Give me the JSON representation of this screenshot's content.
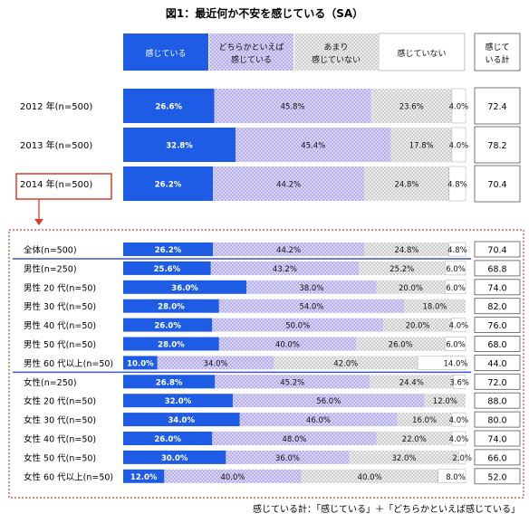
{
  "chart_data": {
    "type": "bar",
    "orientation": "horizontal",
    "stacked": true,
    "title": "図1：最近何か不安を感じている（SA）",
    "xlim": [
      0,
      100
    ],
    "legend": [
      "感じている",
      "どちらかといえば 感じている",
      "あまり 感じていない",
      "感じていない"
    ],
    "total_header": "感じて いる計",
    "colors": {
      "s1": "#1f5ce6",
      "s2": "#c9c4f0",
      "s3": "#dcdcdc",
      "s4": "#ffffff",
      "accent_red": "#d83b2e",
      "separator": "#3b57c9"
    },
    "series": [
      {
        "name": "感じている"
      },
      {
        "name": "どちらかといえば感じている"
      },
      {
        "name": "あまり感じていない"
      },
      {
        "name": "感じていない"
      }
    ],
    "years": [
      {
        "label": "2012 年(n=500)",
        "values": [
          26.6,
          45.8,
          23.6,
          4.0
        ],
        "labels": [
          "26.6%",
          "45.8%",
          "23.6%",
          "4.0%"
        ],
        "total": "72.4"
      },
      {
        "label": "2013 年(n=500)",
        "values": [
          32.8,
          45.4,
          17.8,
          4.0
        ],
        "labels": [
          "32.8%",
          "45.4%",
          "17.8%",
          "4.0%"
        ],
        "total": "78.2"
      },
      {
        "label": "2014 年(n=500)",
        "values": [
          26.2,
          44.2,
          24.8,
          4.8
        ],
        "labels": [
          "26.2%",
          "44.2%",
          "24.8%",
          "4.8%"
        ],
        "total": "70.4"
      }
    ],
    "breakdown": [
      {
        "label": "全体(n=500)",
        "values": [
          26.2,
          44.2,
          24.8,
          4.8
        ],
        "labels": [
          "26.2%",
          "44.2%",
          "24.8%",
          "4.8%"
        ],
        "total": "70.4"
      },
      {
        "label": "男性(n=250)",
        "values": [
          25.6,
          43.2,
          25.2,
          6.0
        ],
        "labels": [
          "25.6%",
          "43.2%",
          "25.2%",
          "6.0%"
        ],
        "total": "68.8"
      },
      {
        "label": "男性 20 代(n=50)",
        "values": [
          36.0,
          38.0,
          20.0,
          6.0
        ],
        "labels": [
          "36.0%",
          "38.0%",
          "20.0%",
          "6.0%"
        ],
        "total": "74.0"
      },
      {
        "label": "男性 30 代(n=50)",
        "values": [
          28.0,
          54.0,
          18.0,
          0
        ],
        "labels": [
          "28.0%",
          "54.0%",
          "18.0%",
          ""
        ],
        "total": "82.0"
      },
      {
        "label": "男性 40 代(n=50)",
        "values": [
          26.0,
          50.0,
          20.0,
          4.0
        ],
        "labels": [
          "26.0%",
          "50.0%",
          "20.0%",
          "4.0%"
        ],
        "total": "76.0"
      },
      {
        "label": "男性 50 代(n=50)",
        "values": [
          28.0,
          40.0,
          26.0,
          6.0
        ],
        "labels": [
          "28.0%",
          "40.0%",
          "26.0%",
          "6.0%"
        ],
        "total": "68.0"
      },
      {
        "label": "男性 60 代以上(n=50)",
        "values": [
          10.0,
          34.0,
          42.0,
          14.0
        ],
        "labels": [
          "10.0%",
          "34.0%",
          "42.0%",
          "14.0%"
        ],
        "total": "44.0"
      },
      {
        "label": "女性(n=250)",
        "values": [
          26.8,
          45.2,
          24.4,
          3.6
        ],
        "labels": [
          "26.8%",
          "45.2%",
          "24.4%",
          "3.6%"
        ],
        "total": "72.0"
      },
      {
        "label": "女性 20 代(n=50)",
        "values": [
          32.0,
          56.0,
          12.0,
          0
        ],
        "labels": [
          "32.0%",
          "56.0%",
          "12.0%",
          ""
        ],
        "total": "88.0"
      },
      {
        "label": "女性 30 代(n=50)",
        "values": [
          34.0,
          46.0,
          16.0,
          4.0
        ],
        "labels": [
          "34.0%",
          "46.0%",
          "16.0%",
          "4.0%"
        ],
        "total": "80.0"
      },
      {
        "label": "女性 40 代(n=50)",
        "values": [
          26.0,
          48.0,
          22.0,
          4.0
        ],
        "labels": [
          "26.0%",
          "48.0%",
          "22.0%",
          "4.0%"
        ],
        "total": "74.0"
      },
      {
        "label": "女性 50 代(n=50)",
        "values": [
          30.0,
          36.0,
          32.0,
          2.0
        ],
        "labels": [
          "30.0%",
          "36.0%",
          "32.0%",
          "2.0%"
        ],
        "total": "66.0"
      },
      {
        "label": "女性 60 代以上(n=50)",
        "values": [
          12.0,
          40.0,
          40.0,
          8.0
        ],
        "labels": [
          "12.0%",
          "40.0%",
          "40.0%",
          "8.0%"
        ],
        "total": "52.0"
      }
    ],
    "footnote": "感じている計：「感じている」＋「どちらかといえば感じている」"
  }
}
